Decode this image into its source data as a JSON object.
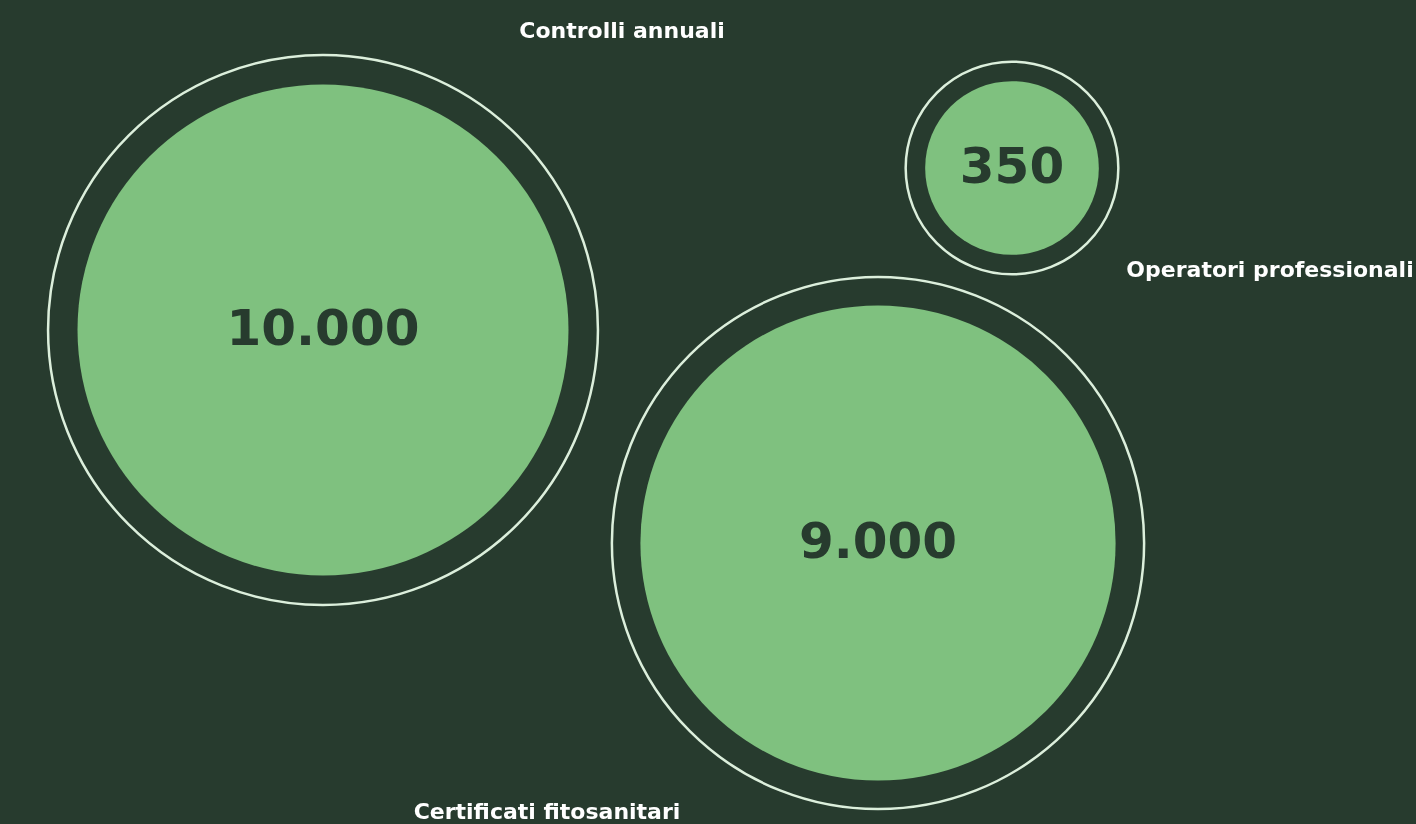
{
  "chart_data": {
    "type": "other",
    "categories": [
      "Controlli annuali",
      "Certificati fitosanitari",
      "Operatori professionali"
    ],
    "values": [
      10000,
      9000,
      350
    ],
    "value_labels": [
      "10.000",
      "9.000",
      "350"
    ],
    "colors": [
      "#7fc17f",
      "#7fc17f",
      "#7fc17f"
    ]
  }
}
